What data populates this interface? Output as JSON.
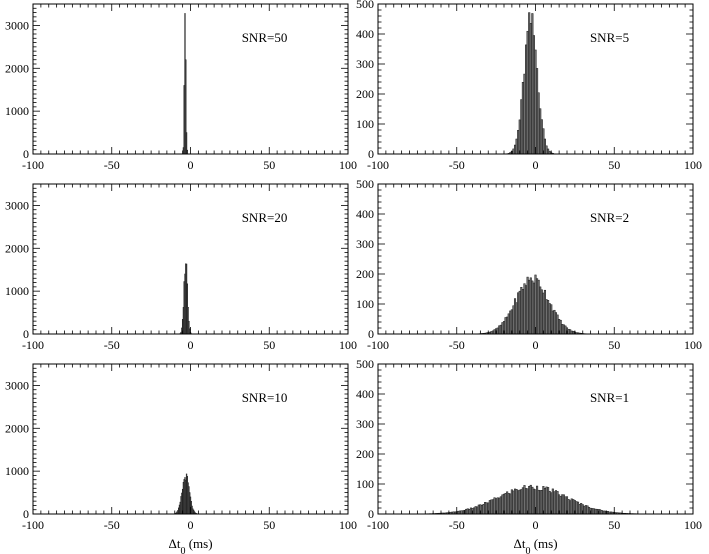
{
  "chart_data": [
    {
      "type": "bar",
      "panel": "top-left",
      "label": "SNR=50",
      "xlim": [
        -100,
        100
      ],
      "ylim": [
        0,
        3500
      ],
      "xticks": [
        -100,
        -50,
        0,
        50,
        100
      ],
      "yticks": [
        0,
        1000,
        2000,
        3000
      ],
      "xlabel": "",
      "bin_width": 0.5,
      "bins": {
        "x": [
          -4.5,
          -4.0,
          -3.5,
          -3.0,
          -2.5,
          -2.0
        ],
        "y": [
          150,
          1600,
          3280,
          2200,
          500,
          90
        ]
      }
    },
    {
      "type": "bar",
      "panel": "top-right",
      "label": "SNR=5",
      "xlim": [
        -100,
        100
      ],
      "ylim": [
        0,
        500
      ],
      "xticks": [
        -100,
        -50,
        0,
        50,
        100
      ],
      "yticks": [
        0,
        100,
        200,
        300,
        400,
        500
      ],
      "xlabel": "",
      "bin_width": 1,
      "gauss": {
        "mean": -3,
        "sigma": 4.3,
        "peak": 440,
        "range": [
          -20,
          14
        ]
      }
    },
    {
      "type": "bar",
      "panel": "middle-left",
      "label": "SNR=20",
      "xlim": [
        -100,
        100
      ],
      "ylim": [
        0,
        3500
      ],
      "xticks": [
        -100,
        -50,
        0,
        50,
        100
      ],
      "yticks": [
        0,
        1000,
        2000,
        3000
      ],
      "xlabel": "",
      "bin_width": 0.5,
      "gauss": {
        "mean": -3,
        "sigma": 1.1,
        "peak": 1720,
        "range": [
          -8,
          3
        ]
      }
    },
    {
      "type": "bar",
      "panel": "middle-right",
      "label": "SNR=2",
      "xlim": [
        -100,
        100
      ],
      "ylim": [
        0,
        500
      ],
      "xticks": [
        -100,
        -50,
        0,
        50,
        100
      ],
      "yticks": [
        0,
        100,
        200,
        300,
        400,
        500
      ],
      "xlabel": "",
      "bin_width": 1,
      "gauss": {
        "mean": -2,
        "sigma": 10.5,
        "peak": 185,
        "range": [
          -45,
          42
        ]
      }
    },
    {
      "type": "bar",
      "panel": "bottom-left",
      "label": "SNR=10",
      "xlim": [
        -100,
        100
      ],
      "ylim": [
        0,
        3500
      ],
      "xticks": [
        -100,
        -50,
        0,
        50,
        100
      ],
      "yticks": [
        0,
        1000,
        2000,
        3000
      ],
      "xlabel": "Δt",
      "xlabel_sub": "0",
      "xlabel_unit": " (ms)",
      "bin_width": 0.5,
      "gauss": {
        "mean": -3,
        "sigma": 2.3,
        "peak": 880,
        "range": [
          -12,
          6
        ]
      }
    },
    {
      "type": "bar",
      "panel": "bottom-right",
      "label": "SNR=1",
      "xlim": [
        -100,
        100
      ],
      "ylim": [
        0,
        500
      ],
      "xticks": [
        -100,
        -50,
        0,
        50,
        100
      ],
      "yticks": [
        0,
        100,
        200,
        300,
        400,
        500
      ],
      "xlabel": "Δt",
      "xlabel_sub": "0",
      "xlabel_unit": " (ms)",
      "bin_width": 1,
      "gauss": {
        "mean": -2,
        "sigma": 22,
        "peak": 90,
        "range": [
          -80,
          75
        ]
      }
    }
  ]
}
